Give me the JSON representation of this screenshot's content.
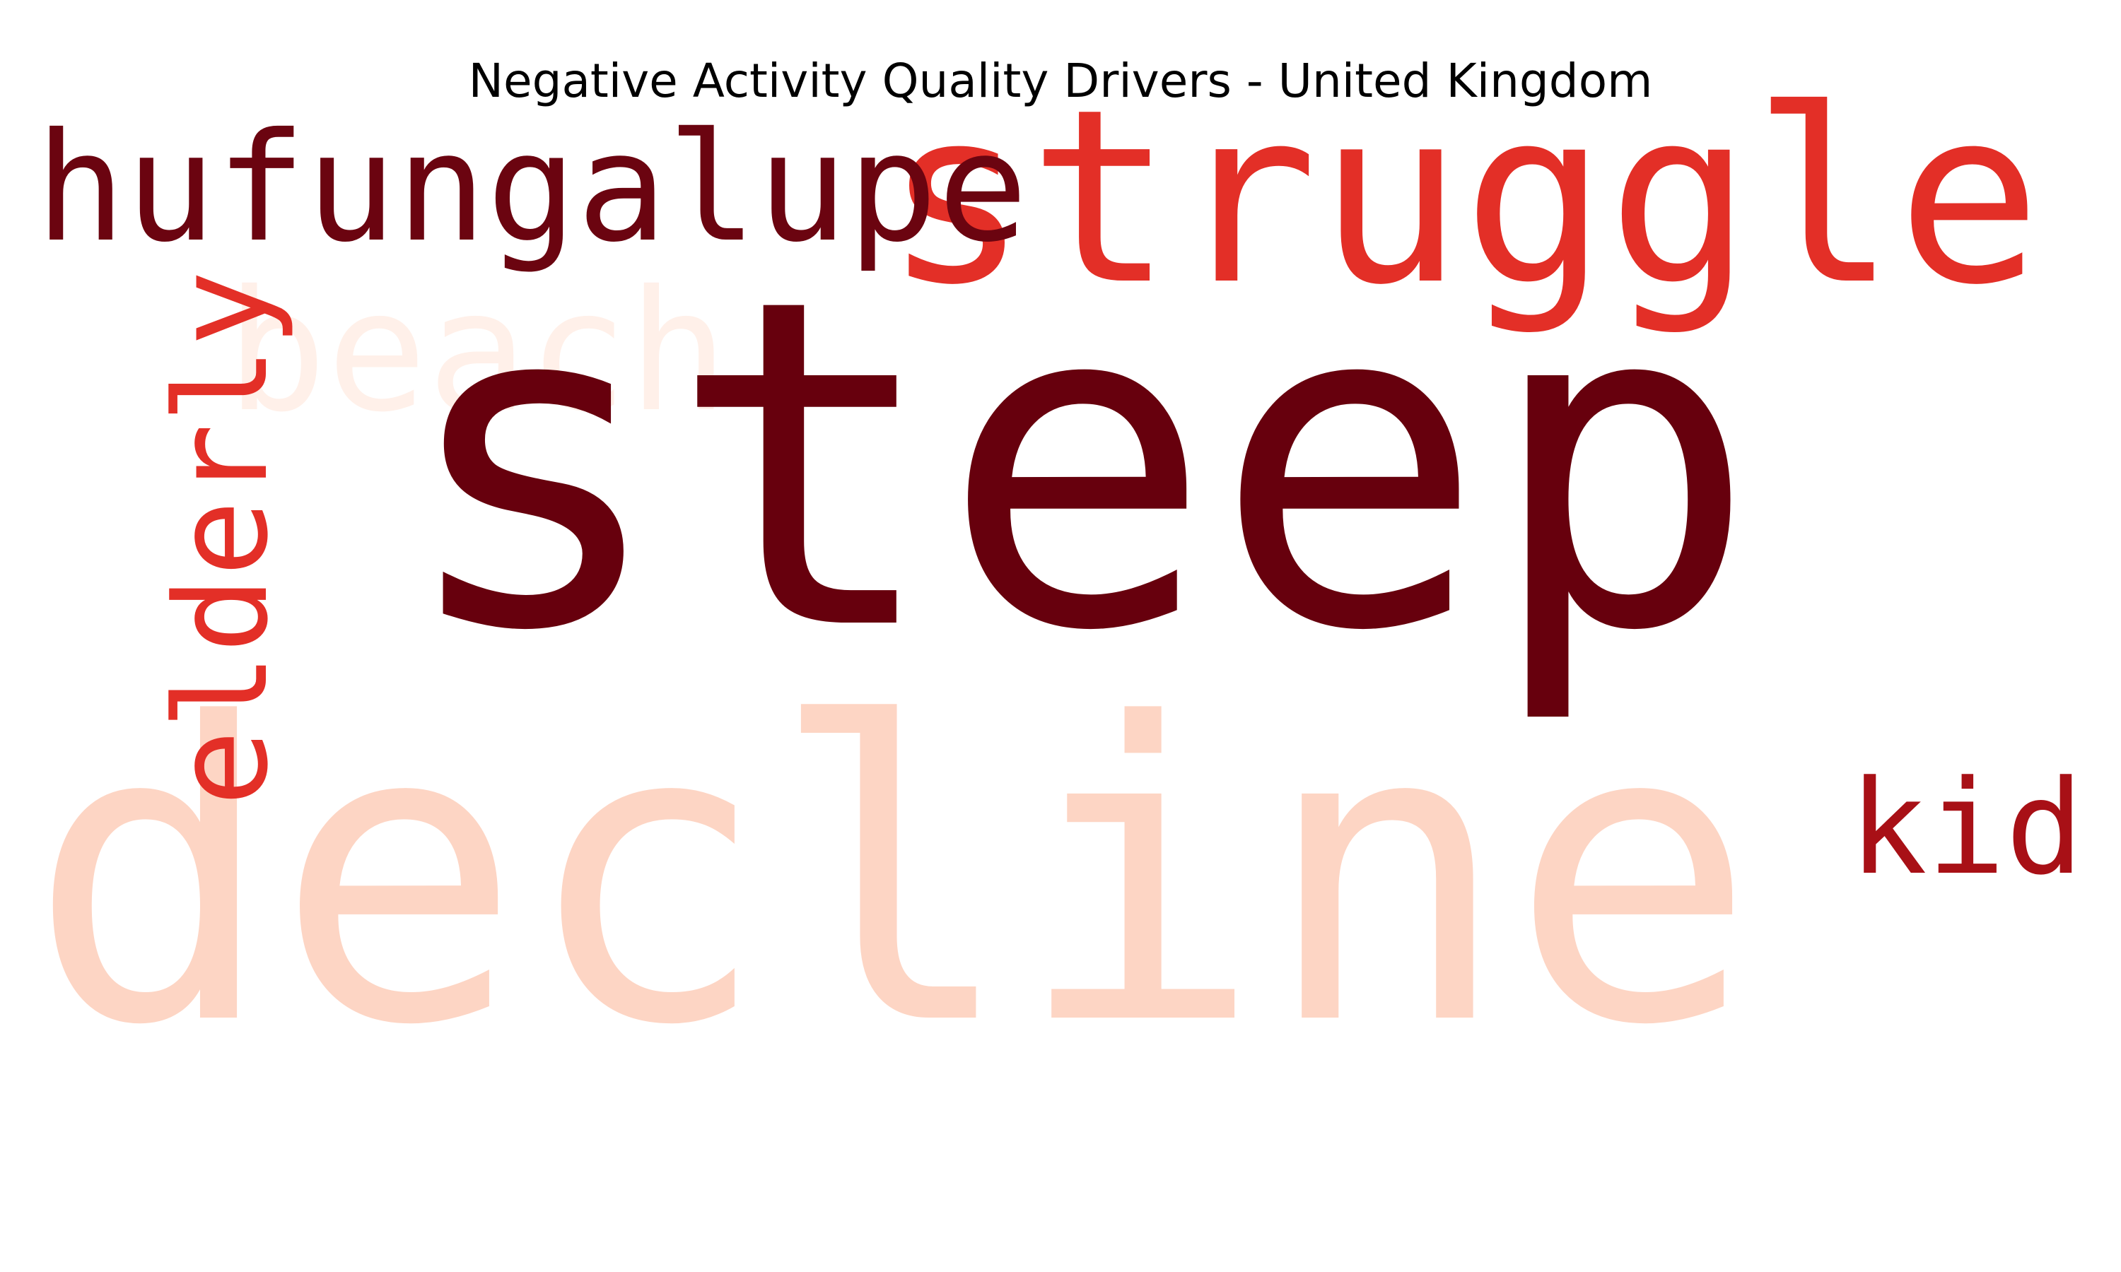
{
  "title": "Negative Activity Quality Drivers - United Kingdom",
  "words": {
    "steep": "steep",
    "decline": "decline",
    "struggle": "struggle",
    "hufungalupe": "hufungalupe",
    "beach": "beach",
    "elderly": "elderly",
    "kid": "kid"
  },
  "colors": {
    "steep": "#67000d",
    "decline": "#fdd5c4",
    "struggle": "#e32f27",
    "hufungalupe": "#6b0410",
    "beach": "#fff0e9",
    "elderly": "#e32f27",
    "kid": "#a81016"
  }
}
